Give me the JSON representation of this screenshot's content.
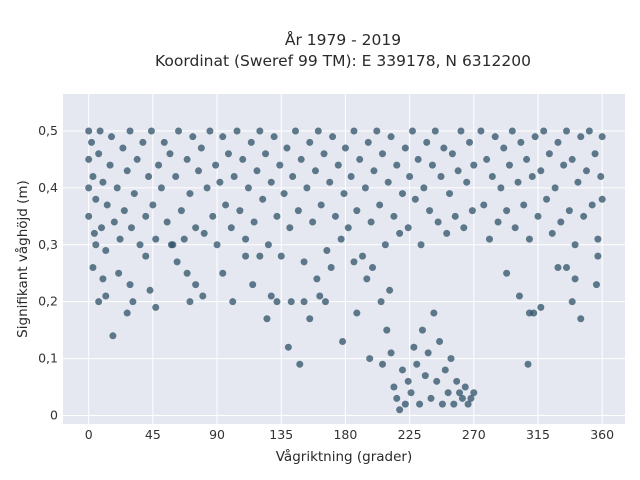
{
  "chart_data": {
    "type": "scatter",
    "title": "År 1979 - 2019",
    "subtitle": "Koordinat (Sweref 99 TM): E 339178, N 6312200",
    "xlabel": "Vågriktning (grader)",
    "ylabel": "Signifikant våghöjd (m)",
    "xlim": [
      -18,
      376
    ],
    "ylim": [
      -0.015,
      0.565
    ],
    "x_ticks": [
      0,
      45,
      90,
      135,
      180,
      225,
      270,
      315,
      360
    ],
    "y_ticks": [
      0,
      0.1,
      0.2,
      0.3,
      0.4,
      0.5
    ],
    "y_tick_labels": [
      "0",
      "0,1",
      "0,2",
      "0,3",
      "0,4",
      "0,5"
    ],
    "grid": true,
    "legend": "none",
    "marker_color": "#2f5168",
    "background_color": "#e5e8f0",
    "series": [
      {
        "points": [
          [
            0,
            0.5
          ],
          [
            0,
            0.45
          ],
          [
            0,
            0.4
          ],
          [
            0,
            0.35
          ],
          [
            2,
            0.48
          ],
          [
            3,
            0.42
          ],
          [
            4,
            0.32
          ],
          [
            5,
            0.3
          ],
          [
            5,
            0.38
          ],
          [
            7,
            0.46
          ],
          [
            8,
            0.5
          ],
          [
            9,
            0.33
          ],
          [
            10,
            0.41
          ],
          [
            12,
            0.29
          ],
          [
            13,
            0.37
          ],
          [
            15,
            0.44
          ],
          [
            16,
            0.49
          ],
          [
            18,
            0.34
          ],
          [
            20,
            0.4
          ],
          [
            22,
            0.31
          ],
          [
            24,
            0.47
          ],
          [
            25,
            0.36
          ],
          [
            27,
            0.43
          ],
          [
            29,
            0.5
          ],
          [
            30,
            0.33
          ],
          [
            32,
            0.39
          ],
          [
            34,
            0.45
          ],
          [
            36,
            0.3
          ],
          [
            38,
            0.48
          ],
          [
            40,
            0.35
          ],
          [
            42,
            0.42
          ],
          [
            44,
            0.5
          ],
          [
            45,
            0.37
          ],
          [
            47,
            0.31
          ],
          [
            49,
            0.44
          ],
          [
            51,
            0.4
          ],
          [
            53,
            0.48
          ],
          [
            55,
            0.34
          ],
          [
            57,
            0.46
          ],
          [
            59,
            0.3
          ],
          [
            61,
            0.42
          ],
          [
            63,
            0.5
          ],
          [
            65,
            0.36
          ],
          [
            67,
            0.31
          ],
          [
            69,
            0.45
          ],
          [
            71,
            0.39
          ],
          [
            73,
            0.49
          ],
          [
            75,
            0.33
          ],
          [
            77,
            0.43
          ],
          [
            79,
            0.47
          ],
          [
            81,
            0.32
          ],
          [
            83,
            0.4
          ],
          [
            85,
            0.5
          ],
          [
            87,
            0.35
          ],
          [
            89,
            0.44
          ],
          [
            90,
            0.3
          ],
          [
            92,
            0.41
          ],
          [
            94,
            0.49
          ],
          [
            96,
            0.37
          ],
          [
            98,
            0.46
          ],
          [
            100,
            0.33
          ],
          [
            102,
            0.42
          ],
          [
            104,
            0.5
          ],
          [
            106,
            0.36
          ],
          [
            108,
            0.45
          ],
          [
            110,
            0.31
          ],
          [
            112,
            0.4
          ],
          [
            114,
            0.48
          ],
          [
            116,
            0.34
          ],
          [
            118,
            0.43
          ],
          [
            120,
            0.5
          ],
          [
            122,
            0.38
          ],
          [
            124,
            0.46
          ],
          [
            126,
            0.3
          ],
          [
            128,
            0.41
          ],
          [
            130,
            0.49
          ],
          [
            132,
            0.35
          ],
          [
            134,
            0.44
          ],
          [
            135,
            0.28
          ],
          [
            137,
            0.39
          ],
          [
            139,
            0.47
          ],
          [
            141,
            0.33
          ],
          [
            143,
            0.42
          ],
          [
            145,
            0.5
          ],
          [
            147,
            0.36
          ],
          [
            149,
            0.45
          ],
          [
            151,
            0.27
          ],
          [
            153,
            0.4
          ],
          [
            155,
            0.48
          ],
          [
            157,
            0.34
          ],
          [
            159,
            0.43
          ],
          [
            161,
            0.5
          ],
          [
            163,
            0.37
          ],
          [
            165,
            0.46
          ],
          [
            167,
            0.29
          ],
          [
            169,
            0.41
          ],
          [
            171,
            0.49
          ],
          [
            173,
            0.35
          ],
          [
            175,
            0.44
          ],
          [
            177,
            0.31
          ],
          [
            179,
            0.39
          ],
          [
            180,
            0.47
          ],
          [
            182,
            0.33
          ],
          [
            184,
            0.42
          ],
          [
            186,
            0.5
          ],
          [
            188,
            0.36
          ],
          [
            190,
            0.45
          ],
          [
            192,
            0.28
          ],
          [
            194,
            0.4
          ],
          [
            196,
            0.48
          ],
          [
            198,
            0.34
          ],
          [
            200,
            0.43
          ],
          [
            202,
            0.5
          ],
          [
            204,
            0.37
          ],
          [
            206,
            0.46
          ],
          [
            208,
            0.3
          ],
          [
            210,
            0.41
          ],
          [
            212,
            0.49
          ],
          [
            214,
            0.35
          ],
          [
            216,
            0.44
          ],
          [
            218,
            0.32
          ],
          [
            220,
            0.39
          ],
          [
            222,
            0.47
          ],
          [
            224,
            0.33
          ],
          [
            225,
            0.42
          ],
          [
            227,
            0.5
          ],
          [
            229,
            0.38
          ],
          [
            231,
            0.45
          ],
          [
            233,
            0.3
          ],
          [
            235,
            0.4
          ],
          [
            237,
            0.48
          ],
          [
            239,
            0.36
          ],
          [
            241,
            0.44
          ],
          [
            243,
            0.5
          ],
          [
            245,
            0.34
          ],
          [
            247,
            0.42
          ],
          [
            249,
            0.47
          ],
          [
            251,
            0.32
          ],
          [
            253,
            0.39
          ],
          [
            255,
            0.46
          ],
          [
            257,
            0.35
          ],
          [
            259,
            0.43
          ],
          [
            261,
            0.5
          ],
          [
            263,
            0.33
          ],
          [
            265,
            0.41
          ],
          [
            267,
            0.48
          ],
          [
            269,
            0.36
          ],
          [
            270,
            0.44
          ],
          [
            275,
            0.5
          ],
          [
            277,
            0.37
          ],
          [
            279,
            0.45
          ],
          [
            281,
            0.31
          ],
          [
            283,
            0.42
          ],
          [
            285,
            0.49
          ],
          [
            287,
            0.34
          ],
          [
            289,
            0.4
          ],
          [
            291,
            0.47
          ],
          [
            293,
            0.36
          ],
          [
            295,
            0.44
          ],
          [
            297,
            0.5
          ],
          [
            299,
            0.33
          ],
          [
            301,
            0.41
          ],
          [
            303,
            0.48
          ],
          [
            305,
            0.37
          ],
          [
            307,
            0.45
          ],
          [
            309,
            0.31
          ],
          [
            311,
            0.42
          ],
          [
            313,
            0.49
          ],
          [
            315,
            0.35
          ],
          [
            317,
            0.43
          ],
          [
            319,
            0.5
          ],
          [
            321,
            0.38
          ],
          [
            323,
            0.46
          ],
          [
            325,
            0.32
          ],
          [
            327,
            0.4
          ],
          [
            329,
            0.48
          ],
          [
            331,
            0.34
          ],
          [
            333,
            0.44
          ],
          [
            335,
            0.5
          ],
          [
            337,
            0.36
          ],
          [
            339,
            0.45
          ],
          [
            341,
            0.3
          ],
          [
            343,
            0.41
          ],
          [
            345,
            0.49
          ],
          [
            347,
            0.35
          ],
          [
            349,
            0.43
          ],
          [
            351,
            0.5
          ],
          [
            353,
            0.37
          ],
          [
            355,
            0.46
          ],
          [
            357,
            0.31
          ],
          [
            359,
            0.42
          ],
          [
            360,
            0.49
          ],
          [
            360,
            0.38
          ],
          [
            3,
            0.26
          ],
          [
            7,
            0.2
          ],
          [
            10,
            0.24
          ],
          [
            12,
            0.21
          ],
          [
            17,
            0.14
          ],
          [
            21,
            0.25
          ],
          [
            27,
            0.18
          ],
          [
            29,
            0.23
          ],
          [
            31,
            0.2
          ],
          [
            40,
            0.28
          ],
          [
            43,
            0.22
          ],
          [
            47,
            0.19
          ],
          [
            58,
            0.3
          ],
          [
            62,
            0.27
          ],
          [
            69,
            0.25
          ],
          [
            71,
            0.2
          ],
          [
            75,
            0.23
          ],
          [
            80,
            0.21
          ],
          [
            94,
            0.25
          ],
          [
            101,
            0.2
          ],
          [
            110,
            0.28
          ],
          [
            115,
            0.23
          ],
          [
            120,
            0.28
          ],
          [
            125,
            0.17
          ],
          [
            128,
            0.21
          ],
          [
            132,
            0.2
          ],
          [
            140,
            0.12
          ],
          [
            142,
            0.2
          ],
          [
            148,
            0.09
          ],
          [
            151,
            0.2
          ],
          [
            155,
            0.17
          ],
          [
            160,
            0.24
          ],
          [
            162,
            0.21
          ],
          [
            166,
            0.2
          ],
          [
            170,
            0.26
          ],
          [
            178,
            0.13
          ],
          [
            186,
            0.27
          ],
          [
            188,
            0.18
          ],
          [
            195,
            0.24
          ],
          [
            197,
            0.1
          ],
          [
            199,
            0.26
          ],
          [
            205,
            0.2
          ],
          [
            206,
            0.09
          ],
          [
            209,
            0.15
          ],
          [
            211,
            0.22
          ],
          [
            212,
            0.11
          ],
          [
            293,
            0.25
          ],
          [
            302,
            0.21
          ],
          [
            308,
            0.09
          ],
          [
            309,
            0.18
          ],
          [
            312,
            0.18
          ],
          [
            317,
            0.19
          ],
          [
            329,
            0.26
          ],
          [
            335,
            0.26
          ],
          [
            339,
            0.2
          ],
          [
            341,
            0.24
          ],
          [
            345,
            0.17
          ],
          [
            356,
            0.23
          ],
          [
            357,
            0.28
          ],
          [
            214,
            0.05
          ],
          [
            216,
            0.03
          ],
          [
            218,
            0.01
          ],
          [
            220,
            0.08
          ],
          [
            222,
            0.02
          ],
          [
            224,
            0.06
          ],
          [
            226,
            0.04
          ],
          [
            228,
            0.12
          ],
          [
            230,
            0.09
          ],
          [
            232,
            0.02
          ],
          [
            234,
            0.15
          ],
          [
            236,
            0.07
          ],
          [
            238,
            0.11
          ],
          [
            240,
            0.03
          ],
          [
            242,
            0.18
          ],
          [
            244,
            0.06
          ],
          [
            246,
            0.13
          ],
          [
            248,
            0.02
          ],
          [
            250,
            0.08
          ],
          [
            252,
            0.04
          ],
          [
            254,
            0.1
          ],
          [
            256,
            0.02
          ],
          [
            258,
            0.06
          ],
          [
            260,
            0.04
          ],
          [
            262,
            0.03
          ],
          [
            264,
            0.05
          ],
          [
            266,
            0.02
          ],
          [
            268,
            0.03
          ],
          [
            270,
            0.04
          ]
        ]
      }
    ]
  }
}
